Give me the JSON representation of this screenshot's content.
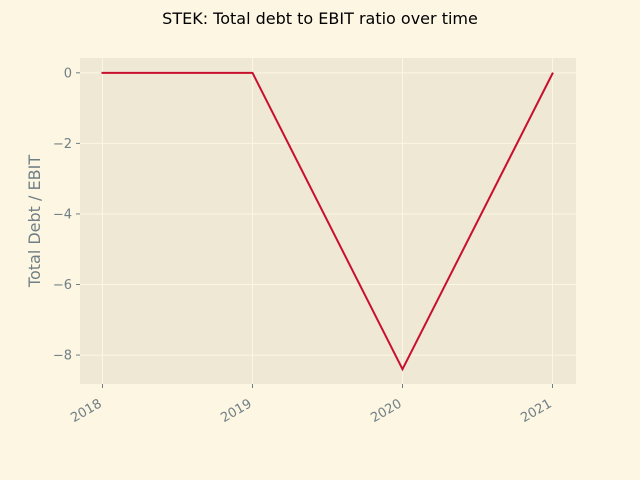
{
  "chart_data": {
    "type": "line",
    "title": "STEK: Total debt to EBIT ratio over time",
    "xlabel": "",
    "ylabel": "Total Debt / EBIT",
    "x": [
      "2018",
      "2019",
      "2020",
      "2021"
    ],
    "series": [
      {
        "values": [
          0,
          0,
          -8.4,
          -0.02
        ]
      }
    ],
    "ylim": [
      -8.82,
      0.42
    ],
    "yticks": [
      0,
      -2,
      -4,
      -6,
      -8
    ],
    "ytick_labels": [
      "0",
      "−2",
      "−4",
      "−6",
      "−8"
    ],
    "grid": true,
    "colors": {
      "figure_bg": "#fdf6e3",
      "plot_bg": "#efe8d5",
      "grid": "#fdf6e3",
      "line": "#c8102e",
      "tick_text": "#6f7f85",
      "title_text": "#000000"
    }
  }
}
